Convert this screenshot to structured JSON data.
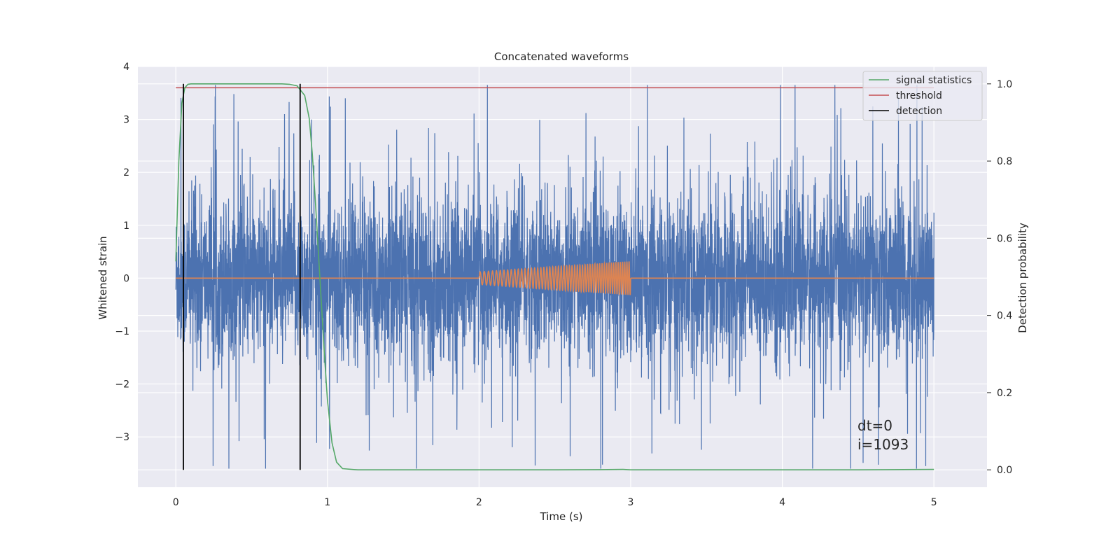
{
  "chart_data": {
    "type": "line",
    "title": "Concatenated waveforms",
    "xlabel": "Time (s)",
    "ylabel_left": "Whitened strain",
    "ylabel_right": "Detection probability",
    "xlim": [
      -0.25,
      5.35
    ],
    "ylim_left": [
      -3.95,
      4.0
    ],
    "ylim_right": [
      -0.045,
      1.045
    ],
    "xticks": [
      0,
      1,
      2,
      3,
      4,
      5
    ],
    "yticks_left": [
      -3,
      -2,
      -1,
      0,
      1,
      2,
      3,
      4
    ],
    "yticks_right": [
      0.0,
      0.2,
      0.4,
      0.6,
      0.8,
      1.0
    ],
    "xtick_labels": [
      "0",
      "1",
      "2",
      "3",
      "4",
      "5"
    ],
    "ytick_left_labels": [
      "−3",
      "−2",
      "−1",
      "0",
      "1",
      "2",
      "3",
      "4"
    ],
    "ytick_right_labels": [
      "0.0",
      "0.2",
      "0.4",
      "0.6",
      "0.8",
      "1.0"
    ],
    "grid": true,
    "legend_position": "top-right",
    "colors": {
      "noise": "#4c72b0",
      "waveform": "#dd8452",
      "signal": "#55a868",
      "threshold": "#c44e52",
      "detection": "#000000",
      "background": "#eaeaf2",
      "grid": "#ffffff"
    },
    "series": [
      {
        "name": "",
        "axis": "left",
        "kind": "noise",
        "x_range": [
          0,
          5
        ],
        "amplitude_envelope": 0.7,
        "peak_max": 3.65,
        "peak_min": -3.6
      },
      {
        "name": "",
        "axis": "left",
        "kind": "chirp",
        "x_range": [
          2.0,
          3.0
        ],
        "amplitude_start": 0.12,
        "amplitude_end": 0.32,
        "baseline": 0
      },
      {
        "name": "signal statistics",
        "axis": "right",
        "x": [
          0.0,
          0.02,
          0.04,
          0.06,
          0.08,
          0.1,
          0.2,
          0.4,
          0.6,
          0.7,
          0.75,
          0.8,
          0.85,
          0.88,
          0.9,
          0.92,
          0.95,
          0.98,
          1.0,
          1.03,
          1.06,
          1.1,
          1.2,
          1.5,
          2.0,
          2.5,
          2.8,
          2.95,
          3.0,
          3.5,
          4.0,
          4.5,
          5.0
        ],
        "y": [
          0.54,
          0.8,
          0.95,
          0.99,
          0.999,
          1.0,
          1.0,
          1.0,
          1.0,
          1.0,
          0.999,
          0.995,
          0.97,
          0.91,
          0.82,
          0.7,
          0.5,
          0.3,
          0.18,
          0.07,
          0.02,
          0.003,
          0.0,
          0.0,
          0.0,
          0.0,
          0.0005,
          0.001,
          0.0,
          0.0,
          0.0,
          0.0,
          0.001
        ]
      },
      {
        "name": "threshold",
        "axis": "right",
        "x": [
          0,
          5
        ],
        "y": [
          0.99,
          0.99
        ]
      },
      {
        "name": "detection",
        "axis": "right",
        "kind": "vlines",
        "x": [
          0.05,
          0.82
        ],
        "y_range": [
          0.0,
          1.0
        ]
      }
    ],
    "annotations": [
      "dt=0",
      "i=1093"
    ]
  }
}
